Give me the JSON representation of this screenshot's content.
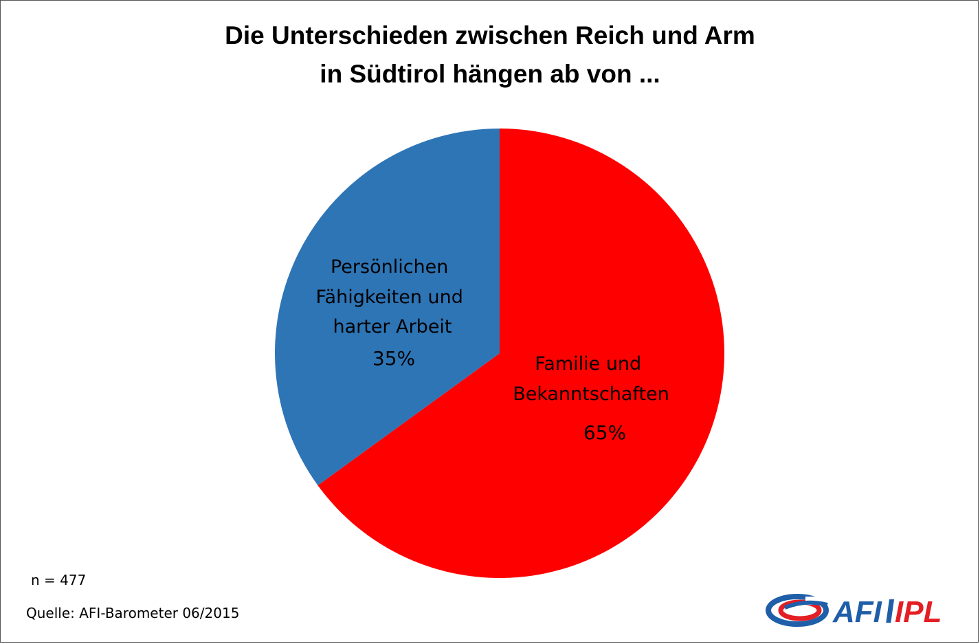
{
  "title_lines": [
    "Die Unterschieden zwischen Reich und Arm",
    "in Südtirol hängen ab von ..."
  ],
  "chart_data": {
    "type": "pie",
    "title": "Die Unterschieden zwischen Reich und Arm in Südtirol hängen ab von ...",
    "start_angle_deg": 0,
    "direction": "clockwise",
    "slices": [
      {
        "label_lines": [
          "Familie und",
          "Bekanntschaften"
        ],
        "value": 65,
        "value_label": "65%",
        "color": "#ff0000"
      },
      {
        "label_lines": [
          "Persönlichen",
          "Fähigkeiten und",
          "harter Arbeit"
        ],
        "value": 35,
        "value_label": "35%",
        "color": "#2e75b6"
      }
    ]
  },
  "sample_size": "n = 477",
  "source": "Quelle: AFI-Barometer 06/2015",
  "logo": {
    "text_left": "AFI",
    "text_right": "IPL",
    "color_left": "#1f5ea8",
    "color_right": "#e31e24"
  }
}
